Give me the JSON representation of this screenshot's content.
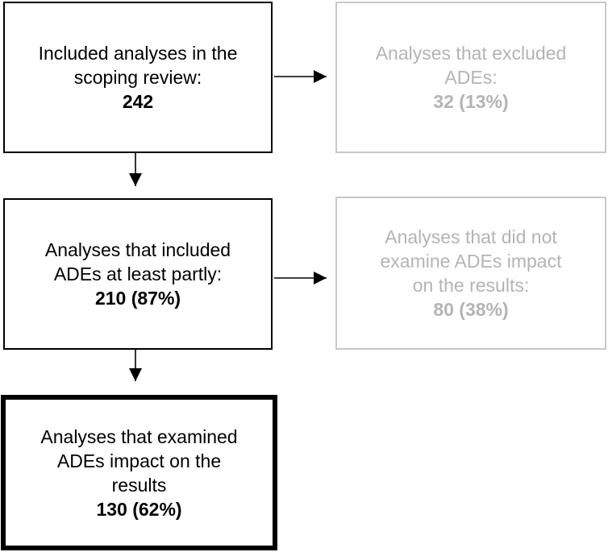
{
  "nodes": {
    "included": {
      "lines": [
        "Included analyses in the",
        "scoping review:"
      ],
      "count": "242"
    },
    "excluded": {
      "lines": [
        "Analyses that excluded",
        "ADEs:"
      ],
      "count": "32 (13%)"
    },
    "partly": {
      "lines": [
        "Analyses that included",
        "ADEs at least partly:"
      ],
      "count": "210 (87%)"
    },
    "not_examined": {
      "lines": [
        "Analyses that did not",
        "examine ADEs impact",
        "on the results:"
      ],
      "count": "80 (38%)"
    },
    "examined": {
      "lines": [
        "Analyses that examined",
        "ADEs impact on the",
        "results"
      ],
      "count": "130 (62%)"
    }
  },
  "colors": {
    "primary_border": "#000000",
    "primary_text": "#000000",
    "faded_border": "#c8c8c8",
    "faded_text": "#b4b4b4",
    "arrow": "#000000"
  }
}
